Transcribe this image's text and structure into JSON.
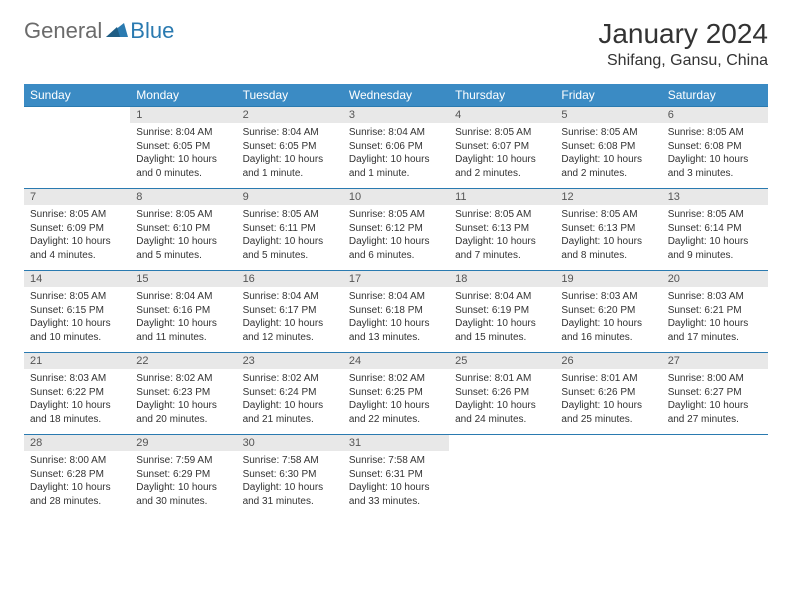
{
  "brand": {
    "part1": "General",
    "part2": "Blue"
  },
  "title": "January 2024",
  "location": "Shifang, Gansu, China",
  "colors": {
    "header_bg": "#3b8bc4",
    "header_text": "#ffffff",
    "row_border": "#2a7ab0",
    "daynum_bg": "#e8e8e8",
    "logo_gray": "#6b6b6b",
    "logo_blue": "#2a7ab0"
  },
  "day_names": [
    "Sunday",
    "Monday",
    "Tuesday",
    "Wednesday",
    "Thursday",
    "Friday",
    "Saturday"
  ],
  "calendar": {
    "type": "table",
    "weeks": [
      [
        null,
        {
          "n": "1",
          "sr": "8:04 AM",
          "ss": "6:05 PM",
          "dl": "10 hours and 0 minutes."
        },
        {
          "n": "2",
          "sr": "8:04 AM",
          "ss": "6:05 PM",
          "dl": "10 hours and 1 minute."
        },
        {
          "n": "3",
          "sr": "8:04 AM",
          "ss": "6:06 PM",
          "dl": "10 hours and 1 minute."
        },
        {
          "n": "4",
          "sr": "8:05 AM",
          "ss": "6:07 PM",
          "dl": "10 hours and 2 minutes."
        },
        {
          "n": "5",
          "sr": "8:05 AM",
          "ss": "6:08 PM",
          "dl": "10 hours and 2 minutes."
        },
        {
          "n": "6",
          "sr": "8:05 AM",
          "ss": "6:08 PM",
          "dl": "10 hours and 3 minutes."
        }
      ],
      [
        {
          "n": "7",
          "sr": "8:05 AM",
          "ss": "6:09 PM",
          "dl": "10 hours and 4 minutes."
        },
        {
          "n": "8",
          "sr": "8:05 AM",
          "ss": "6:10 PM",
          "dl": "10 hours and 5 minutes."
        },
        {
          "n": "9",
          "sr": "8:05 AM",
          "ss": "6:11 PM",
          "dl": "10 hours and 5 minutes."
        },
        {
          "n": "10",
          "sr": "8:05 AM",
          "ss": "6:12 PM",
          "dl": "10 hours and 6 minutes."
        },
        {
          "n": "11",
          "sr": "8:05 AM",
          "ss": "6:13 PM",
          "dl": "10 hours and 7 minutes."
        },
        {
          "n": "12",
          "sr": "8:05 AM",
          "ss": "6:13 PM",
          "dl": "10 hours and 8 minutes."
        },
        {
          "n": "13",
          "sr": "8:05 AM",
          "ss": "6:14 PM",
          "dl": "10 hours and 9 minutes."
        }
      ],
      [
        {
          "n": "14",
          "sr": "8:05 AM",
          "ss": "6:15 PM",
          "dl": "10 hours and 10 minutes."
        },
        {
          "n": "15",
          "sr": "8:04 AM",
          "ss": "6:16 PM",
          "dl": "10 hours and 11 minutes."
        },
        {
          "n": "16",
          "sr": "8:04 AM",
          "ss": "6:17 PM",
          "dl": "10 hours and 12 minutes."
        },
        {
          "n": "17",
          "sr": "8:04 AM",
          "ss": "6:18 PM",
          "dl": "10 hours and 13 minutes."
        },
        {
          "n": "18",
          "sr": "8:04 AM",
          "ss": "6:19 PM",
          "dl": "10 hours and 15 minutes."
        },
        {
          "n": "19",
          "sr": "8:03 AM",
          "ss": "6:20 PM",
          "dl": "10 hours and 16 minutes."
        },
        {
          "n": "20",
          "sr": "8:03 AM",
          "ss": "6:21 PM",
          "dl": "10 hours and 17 minutes."
        }
      ],
      [
        {
          "n": "21",
          "sr": "8:03 AM",
          "ss": "6:22 PM",
          "dl": "10 hours and 18 minutes."
        },
        {
          "n": "22",
          "sr": "8:02 AM",
          "ss": "6:23 PM",
          "dl": "10 hours and 20 minutes."
        },
        {
          "n": "23",
          "sr": "8:02 AM",
          "ss": "6:24 PM",
          "dl": "10 hours and 21 minutes."
        },
        {
          "n": "24",
          "sr": "8:02 AM",
          "ss": "6:25 PM",
          "dl": "10 hours and 22 minutes."
        },
        {
          "n": "25",
          "sr": "8:01 AM",
          "ss": "6:26 PM",
          "dl": "10 hours and 24 minutes."
        },
        {
          "n": "26",
          "sr": "8:01 AM",
          "ss": "6:26 PM",
          "dl": "10 hours and 25 minutes."
        },
        {
          "n": "27",
          "sr": "8:00 AM",
          "ss": "6:27 PM",
          "dl": "10 hours and 27 minutes."
        }
      ],
      [
        {
          "n": "28",
          "sr": "8:00 AM",
          "ss": "6:28 PM",
          "dl": "10 hours and 28 minutes."
        },
        {
          "n": "29",
          "sr": "7:59 AM",
          "ss": "6:29 PM",
          "dl": "10 hours and 30 minutes."
        },
        {
          "n": "30",
          "sr": "7:58 AM",
          "ss": "6:30 PM",
          "dl": "10 hours and 31 minutes."
        },
        {
          "n": "31",
          "sr": "7:58 AM",
          "ss": "6:31 PM",
          "dl": "10 hours and 33 minutes."
        },
        null,
        null,
        null
      ]
    ]
  },
  "labels": {
    "sunrise": "Sunrise:",
    "sunset": "Sunset:",
    "daylight": "Daylight:"
  }
}
